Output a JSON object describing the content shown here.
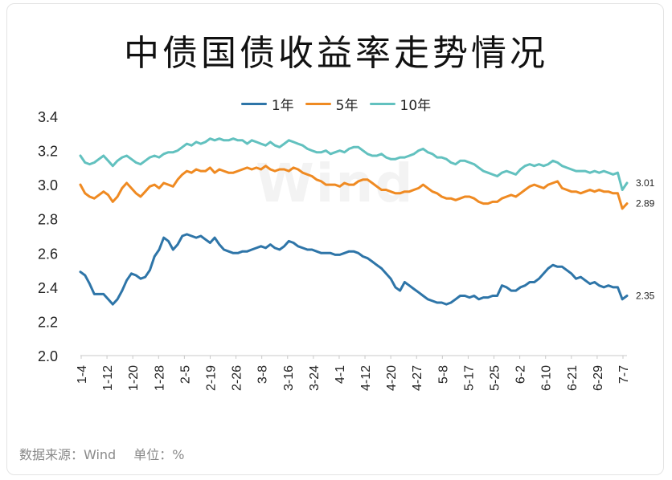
{
  "title": "中债国债收益率走势情况",
  "footer": {
    "source": "数据来源：Wind",
    "unit": "单位：%"
  },
  "watermark": "Wind",
  "chart_data": {
    "type": "line",
    "title": "中债国债收益率走势情况",
    "xlabel": "",
    "ylabel": "",
    "ylim": [
      2.0,
      3.4
    ],
    "yticks": [
      "2.0",
      "2.2",
      "2.4",
      "2.6",
      "2.8",
      "3.0",
      "3.2",
      "3.4"
    ],
    "x_tick_labels": [
      "1-4",
      "1-12",
      "1-20",
      "1-28",
      "2-5",
      "2-19",
      "2-26",
      "3-8",
      "3-16",
      "3-24",
      "4-1",
      "4-12",
      "4-20",
      "4-27",
      "5-8",
      "5-17",
      "5-25",
      "6-2",
      "6-10",
      "6-21",
      "6-29",
      "7-7"
    ],
    "legend_position": "top-center",
    "grid": false,
    "series": [
      {
        "name": "1年",
        "color": "#2e75a8",
        "end_label": "2.35",
        "values": [
          2.49,
          2.47,
          2.42,
          2.36,
          2.36,
          2.36,
          2.33,
          2.3,
          2.33,
          2.38,
          2.44,
          2.48,
          2.47,
          2.45,
          2.46,
          2.5,
          2.58,
          2.62,
          2.69,
          2.67,
          2.62,
          2.65,
          2.7,
          2.71,
          2.7,
          2.69,
          2.7,
          2.68,
          2.66,
          2.69,
          2.65,
          2.62,
          2.61,
          2.6,
          2.6,
          2.61,
          2.61,
          2.62,
          2.63,
          2.64,
          2.63,
          2.65,
          2.63,
          2.62,
          2.64,
          2.67,
          2.66,
          2.64,
          2.63,
          2.62,
          2.62,
          2.61,
          2.6,
          2.6,
          2.6,
          2.59,
          2.59,
          2.6,
          2.61,
          2.61,
          2.6,
          2.58,
          2.57,
          2.55,
          2.53,
          2.51,
          2.48,
          2.45,
          2.4,
          2.38,
          2.43,
          2.41,
          2.39,
          2.37,
          2.35,
          2.33,
          2.32,
          2.31,
          2.31,
          2.3,
          2.31,
          2.33,
          2.35,
          2.35,
          2.34,
          2.35,
          2.33,
          2.34,
          2.34,
          2.35,
          2.35,
          2.41,
          2.4,
          2.38,
          2.38,
          2.4,
          2.41,
          2.43,
          2.43,
          2.45,
          2.48,
          2.51,
          2.53,
          2.52,
          2.52,
          2.5,
          2.48,
          2.45,
          2.46,
          2.44,
          2.42,
          2.43,
          2.41,
          2.4,
          2.41,
          2.4,
          2.4,
          2.33,
          2.35
        ]
      },
      {
        "name": "5年",
        "color": "#ef8a22",
        "end_label": "2.89",
        "values": [
          3.0,
          2.95,
          2.93,
          2.92,
          2.94,
          2.96,
          2.94,
          2.9,
          2.93,
          2.98,
          3.01,
          2.98,
          2.95,
          2.93,
          2.96,
          2.99,
          3.0,
          2.98,
          3.01,
          3.0,
          2.99,
          3.03,
          3.06,
          3.08,
          3.07,
          3.09,
          3.08,
          3.08,
          3.1,
          3.07,
          3.09,
          3.08,
          3.07,
          3.07,
          3.08,
          3.09,
          3.1,
          3.09,
          3.1,
          3.09,
          3.11,
          3.09,
          3.08,
          3.09,
          3.09,
          3.08,
          3.1,
          3.09,
          3.07,
          3.06,
          3.05,
          3.03,
          3.02,
          3.0,
          3.0,
          3.0,
          2.99,
          3.01,
          3.0,
          3.0,
          3.02,
          3.03,
          3.03,
          3.01,
          2.99,
          2.97,
          2.97,
          2.96,
          2.95,
          2.95,
          2.96,
          2.96,
          2.97,
          2.98,
          3.0,
          2.98,
          2.96,
          2.95,
          2.93,
          2.92,
          2.92,
          2.91,
          2.92,
          2.93,
          2.93,
          2.92,
          2.9,
          2.89,
          2.89,
          2.9,
          2.9,
          2.92,
          2.93,
          2.94,
          2.93,
          2.95,
          2.97,
          2.99,
          3.0,
          2.99,
          2.98,
          3.0,
          3.01,
          3.02,
          2.98,
          2.97,
          2.96,
          2.96,
          2.95,
          2.96,
          2.97,
          2.96,
          2.97,
          2.96,
          2.96,
          2.95,
          2.95,
          2.86,
          2.89
        ]
      },
      {
        "name": "10年",
        "color": "#62c1bf",
        "end_label": "3.01",
        "values": [
          3.17,
          3.13,
          3.12,
          3.13,
          3.15,
          3.17,
          3.14,
          3.11,
          3.14,
          3.16,
          3.17,
          3.15,
          3.13,
          3.12,
          3.14,
          3.16,
          3.17,
          3.16,
          3.18,
          3.19,
          3.19,
          3.2,
          3.22,
          3.24,
          3.23,
          3.25,
          3.24,
          3.25,
          3.27,
          3.26,
          3.27,
          3.26,
          3.26,
          3.27,
          3.26,
          3.26,
          3.24,
          3.26,
          3.25,
          3.24,
          3.23,
          3.25,
          3.23,
          3.22,
          3.24,
          3.26,
          3.25,
          3.24,
          3.23,
          3.21,
          3.2,
          3.19,
          3.19,
          3.2,
          3.18,
          3.19,
          3.2,
          3.19,
          3.21,
          3.22,
          3.22,
          3.2,
          3.18,
          3.17,
          3.17,
          3.18,
          3.16,
          3.15,
          3.15,
          3.16,
          3.16,
          3.17,
          3.18,
          3.2,
          3.21,
          3.19,
          3.18,
          3.16,
          3.16,
          3.15,
          3.13,
          3.12,
          3.14,
          3.14,
          3.13,
          3.12,
          3.1,
          3.08,
          3.07,
          3.06,
          3.05,
          3.07,
          3.08,
          3.07,
          3.06,
          3.09,
          3.11,
          3.12,
          3.11,
          3.12,
          3.11,
          3.12,
          3.14,
          3.13,
          3.11,
          3.1,
          3.09,
          3.08,
          3.08,
          3.08,
          3.07,
          3.08,
          3.07,
          3.08,
          3.07,
          3.06,
          3.07,
          2.97,
          3.01
        ]
      }
    ]
  }
}
